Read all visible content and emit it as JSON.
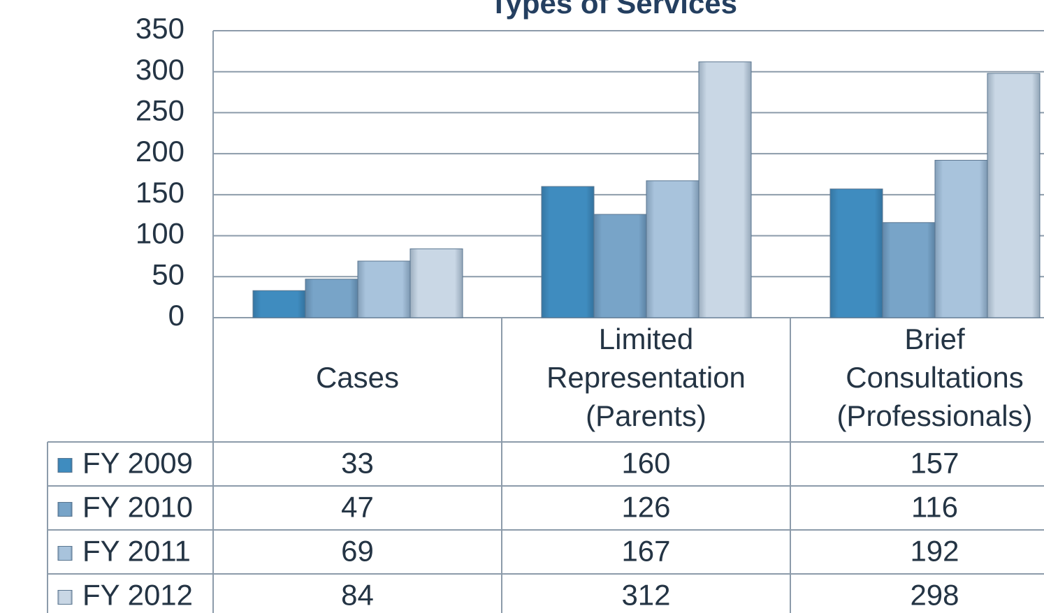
{
  "chart_data": {
    "type": "bar",
    "title": "Types of Services",
    "categories": [
      "Cases",
      "Limited Representation (Parents)",
      "Brief Consultations (Professionals)"
    ],
    "series": [
      {
        "name": "FY 2009",
        "color": "#3f8cbf",
        "values": [
          33,
          160,
          157
        ]
      },
      {
        "name": "FY 2010",
        "color": "#78a4c8",
        "values": [
          47,
          126,
          116
        ]
      },
      {
        "name": "FY 2011",
        "color": "#a8c3dc",
        "values": [
          69,
          167,
          192
        ]
      },
      {
        "name": "FY 2012",
        "color": "#c9d7e5",
        "values": [
          84,
          312,
          298
        ]
      }
    ],
    "ylim": [
      0,
      350
    ],
    "yticks": [
      0,
      50,
      100,
      150,
      200,
      250,
      300,
      350
    ],
    "grid": true
  }
}
